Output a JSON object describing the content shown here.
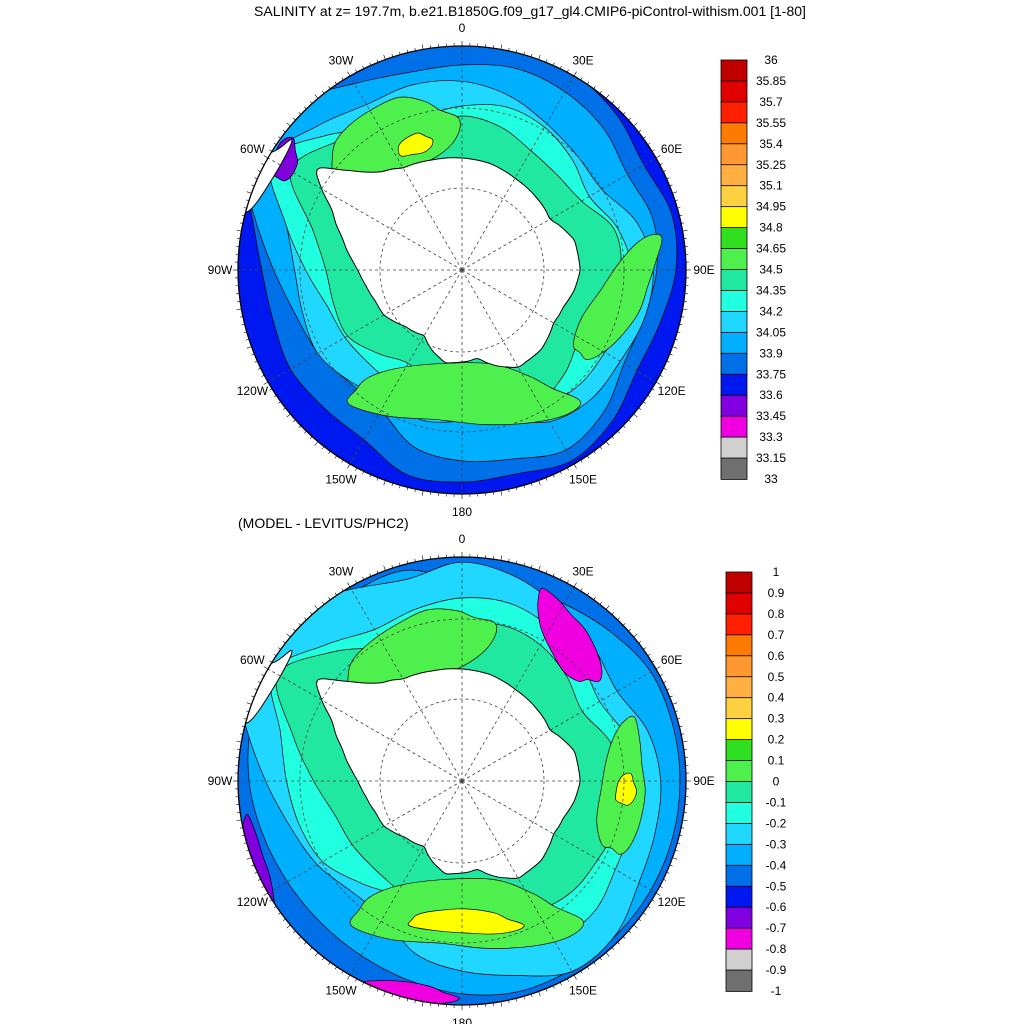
{
  "title": "SALINITY at z= 197.7m, b.e21.B1850G.f09_g17_gl4.CMIP6-piControl-withism.001 [1-80]",
  "subtitle": "(MODEL - LEVITUS/PHC2)",
  "projection": "south polar stereographic",
  "graticule": {
    "line_style": "dashed",
    "meridian_step_deg": 30,
    "parallel_step_deg": 10
  },
  "lon_labels": [
    {
      "lon": 0,
      "text": "0"
    },
    {
      "lon": 30,
      "text": "30E"
    },
    {
      "lon": 60,
      "text": "60E"
    },
    {
      "lon": 90,
      "text": "90E"
    },
    {
      "lon": 120,
      "text": "120E"
    },
    {
      "lon": 150,
      "text": "150E"
    },
    {
      "lon": 180,
      "text": "180"
    },
    {
      "lon": -150,
      "text": "150W"
    },
    {
      "lon": -120,
      "text": "120W"
    },
    {
      "lon": -90,
      "text": "90W"
    },
    {
      "lon": -60,
      "text": "60W"
    },
    {
      "lon": -30,
      "text": "30W"
    }
  ],
  "land_color": "#ffffff",
  "panels": [
    {
      "field": "Salinity",
      "colorbar": {
        "labels": [
          "36",
          "35.85",
          "35.7",
          "35.55",
          "35.4",
          "35.25",
          "35.1",
          "34.95",
          "34.8",
          "34.65",
          "34.5",
          "34.35",
          "34.2",
          "34.05",
          "33.9",
          "33.75",
          "33.6",
          "33.45",
          "33.3",
          "33.15",
          "33"
        ],
        "colors": [
          "#c00000",
          "#e00000",
          "#ff2000",
          "#ff7a00",
          "#ff9830",
          "#ffb040",
          "#ffd040",
          "#ffff00",
          "#30e020",
          "#4ef04e",
          "#20e8a0",
          "#20ffe0",
          "#20d8ff",
          "#00b0ff",
          "#0070e8",
          "#0018f0",
          "#8000e0",
          "#f000e0",
          "#d0d0d0",
          "#707070"
        ]
      }
    },
    {
      "field": "Salinity difference (MODEL - LEVITUS/PHC2)",
      "colorbar": {
        "labels": [
          "1",
          "0.9",
          "0.8",
          "0.7",
          "0.6",
          "0.5",
          "0.4",
          "0.3",
          "0.2",
          "0.1",
          "0",
          "-0.1",
          "-0.2",
          "-0.3",
          "-0.4",
          "-0.5",
          "-0.6",
          "-0.7",
          "-0.8",
          "-0.9",
          "-1"
        ],
        "colors": [
          "#c00000",
          "#e00000",
          "#ff2000",
          "#ff7a00",
          "#ff9830",
          "#ffb040",
          "#ffd040",
          "#ffff00",
          "#30e020",
          "#4ef04e",
          "#20e8a0",
          "#20ffe0",
          "#20d8ff",
          "#00b0ff",
          "#0070e8",
          "#0018f0",
          "#8000e0",
          "#f000e0",
          "#d0d0d0",
          "#707070"
        ]
      }
    }
  ]
}
